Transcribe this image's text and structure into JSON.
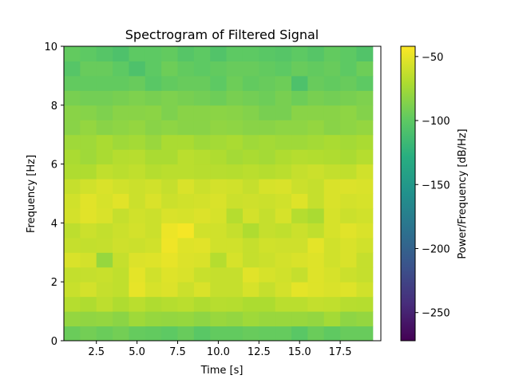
{
  "chart_data": {
    "type": "heatmap",
    "title": "Spectrogram of Filtered Signal",
    "xlabel": "Time [s]",
    "ylabel": "Frequency [Hz]",
    "xlim": [
      0.5,
      20
    ],
    "ylim": [
      0,
      10
    ],
    "x_ticks": [
      "2.5",
      "5.0",
      "7.5",
      "10.0",
      "12.5",
      "15.0",
      "17.5"
    ],
    "y_ticks": [
      "0",
      "2",
      "4",
      "6",
      "8",
      "10"
    ],
    "colorbar": {
      "label": "Power/Frequency [dB/Hz]",
      "colormap": "viridis",
      "range": [
        -272,
        -42
      ],
      "ticks": [
        "−50",
        "−100",
        "−150",
        "−200",
        "−250"
      ]
    },
    "grid": false,
    "time_bins": [
      1,
      2,
      3,
      4,
      5,
      6,
      7,
      8,
      9,
      10,
      11,
      12,
      13,
      14,
      15,
      16,
      17,
      18,
      19
    ],
    "freq_bins": [
      0.25,
      0.75,
      1.25,
      1.75,
      2.25,
      2.75,
      3.25,
      3.75,
      4.25,
      4.75,
      5.25,
      5.75,
      6.25,
      6.75,
      7.25,
      7.75,
      8.25,
      8.75,
      9.25,
      9.75
    ],
    "power_db": [
      [
        -95,
        -92,
        -95,
        -92,
        -97,
        -98,
        -100,
        -96,
        -102,
        -98,
        -98,
        -96,
        -97,
        -97,
        -102,
        -95,
        -99,
        -96,
        -96
      ],
      [
        -80,
        -81,
        -80,
        -83,
        -76,
        -79,
        -80,
        -79,
        -82,
        -78,
        -80,
        -76,
        -78,
        -78,
        -78,
        -80,
        -74,
        -82,
        -80
      ],
      [
        -68,
        -70,
        -65,
        -70,
        -66,
        -70,
        -68,
        -66,
        -70,
        -67,
        -68,
        -71,
        -71,
        -66,
        -66,
        -63,
        -64,
        -67,
        -68
      ],
      [
        -61,
        -57,
        -62,
        -64,
        -50,
        -56,
        -54,
        -60,
        -55,
        -62,
        -62,
        -56,
        -62,
        -57,
        -51,
        -53,
        -55,
        -53,
        -58
      ],
      [
        -63,
        -62,
        -61,
        -64,
        -51,
        -58,
        -53,
        -55,
        -61,
        -62,
        -62,
        -52,
        -56,
        -58,
        -62,
        -53,
        -56,
        -60,
        -62
      ],
      [
        -55,
        -57,
        -79,
        -62,
        -54,
        -53,
        -50,
        -54,
        -55,
        -68,
        -56,
        -62,
        -60,
        -57,
        -55,
        -53,
        -58,
        -55,
        -62
      ],
      [
        -62,
        -63,
        -62,
        -59,
        -60,
        -58,
        -47,
        -53,
        -52,
        -58,
        -58,
        -62,
        -58,
        -59,
        -59,
        -51,
        -58,
        -55,
        -58
      ],
      [
        -65,
        -60,
        -63,
        -60,
        -57,
        -60,
        -48,
        -45,
        -58,
        -58,
        -62,
        -70,
        -62,
        -64,
        -60,
        -64,
        -56,
        -52,
        -55
      ],
      [
        -57,
        -52,
        -55,
        -62,
        -58,
        -60,
        -55,
        -56,
        -54,
        -56,
        -68,
        -57,
        -62,
        -56,
        -68,
        -72,
        -56,
        -60,
        -58
      ],
      [
        -58,
        -52,
        -56,
        -52,
        -60,
        -55,
        -60,
        -58,
        -57,
        -55,
        -60,
        -59,
        -60,
        -58,
        -53,
        -62,
        -55,
        -57,
        -56
      ],
      [
        -62,
        -58,
        -55,
        -58,
        -60,
        -58,
        -62,
        -55,
        -60,
        -57,
        -58,
        -62,
        -56,
        -55,
        -60,
        -62,
        -55,
        -54,
        -55
      ],
      [
        -70,
        -70,
        -64,
        -66,
        -64,
        -68,
        -66,
        -66,
        -67,
        -67,
        -68,
        -66,
        -68,
        -66,
        -62,
        -60,
        -63,
        -64,
        -58
      ],
      [
        -72,
        -76,
        -72,
        -68,
        -67,
        -72,
        -72,
        -66,
        -68,
        -70,
        -74,
        -72,
        -74,
        -70,
        -68,
        -69,
        -70,
        -72,
        -68
      ],
      [
        -76,
        -76,
        -72,
        -76,
        -74,
        -78,
        -72,
        -72,
        -76,
        -74,
        -72,
        -76,
        -74,
        -76,
        -76,
        -74,
        -72,
        -74,
        -72
      ],
      [
        -84,
        -80,
        -84,
        -82,
        -80,
        -84,
        -82,
        -84,
        -84,
        -81,
        -82,
        -84,
        -84,
        -82,
        -82,
        -80,
        -84,
        -82,
        -80
      ],
      [
        -84,
        -85,
        -88,
        -84,
        -84,
        -83,
        -88,
        -84,
        -84,
        -83,
        -84,
        -86,
        -90,
        -90,
        -84,
        -84,
        -84,
        -82,
        -86
      ],
      [
        -90,
        -92,
        -92,
        -90,
        -88,
        -90,
        -88,
        -90,
        -92,
        -94,
        -90,
        -92,
        -94,
        -90,
        -94,
        -90,
        -92,
        -90,
        -88
      ],
      [
        -98,
        -98,
        -98,
        -98,
        -96,
        -102,
        -98,
        -96,
        -96,
        -100,
        -94,
        -98,
        -96,
        -94,
        -108,
        -96,
        -98,
        -96,
        -100
      ],
      [
        -104,
        -96,
        -96,
        -100,
        -108,
        -100,
        -94,
        -98,
        -100,
        -98,
        -96,
        -96,
        -98,
        -100,
        -96,
        -98,
        -96,
        -100,
        -94
      ],
      [
        -98,
        -100,
        -104,
        -108,
        -100,
        -100,
        -98,
        -104,
        -100,
        -106,
        -100,
        -100,
        -102,
        -104,
        -100,
        -104,
        -98,
        -100,
        -106
      ]
    ]
  }
}
